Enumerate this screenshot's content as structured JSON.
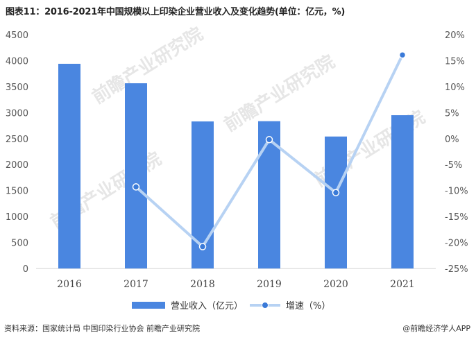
{
  "title": "图表11：2016-2021年中国规模以上印染企业营业收入及变化趋势(单位：亿元，%)",
  "chart_data": {
    "type": "bar",
    "categories": [
      "2016",
      "2017",
      "2018",
      "2019",
      "2020",
      "2021"
    ],
    "series": [
      {
        "name": "营业收入（亿元）",
        "type": "bar",
        "axis": "left",
        "color": "#4a86e0",
        "values": [
          3940,
          3565,
          2830,
          2835,
          2540,
          2950
        ]
      },
      {
        "name": "增速（%）",
        "type": "line",
        "axis": "right",
        "color": "#b7d2f3",
        "marker_color": "#3a7ad8",
        "values": [
          null,
          -9.3,
          -20.8,
          -0.2,
          -10.4,
          16.1
        ]
      }
    ],
    "y_left": {
      "min": 0,
      "max": 4500,
      "step": 500,
      "ticks": [
        "0",
        "500",
        "1000",
        "1500",
        "2000",
        "2500",
        "3000",
        "3500",
        "4000",
        "4500"
      ]
    },
    "y_right": {
      "min": -25,
      "max": 20,
      "step": 5,
      "ticks": [
        "-25%",
        "-20%",
        "-15%",
        "-10%",
        "-5%",
        "0%",
        "5%",
        "10%",
        "15%",
        "20%"
      ]
    },
    "grid": false,
    "legend_position": "bottom"
  },
  "legend": {
    "bar_label": "营业收入（亿元）",
    "line_label": "增速（%）"
  },
  "footer": {
    "source": "资料来源：国家统计局 中国印染行业协会 前瞻产业研究院",
    "brand": "@前瞻经济学人APP"
  },
  "watermark": {
    "text": "前瞻产业研究院"
  }
}
